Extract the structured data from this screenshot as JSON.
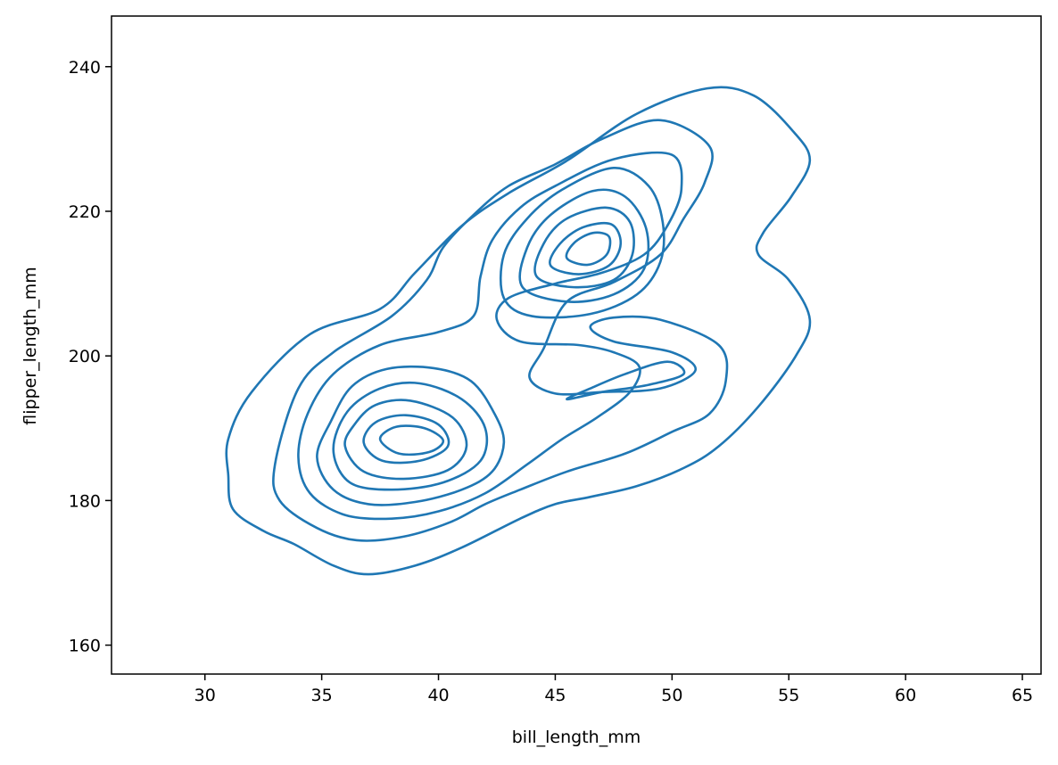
{
  "chart_data": {
    "type": "contour",
    "title": "",
    "xlabel": "bill_length_mm",
    "ylabel": "flipper_length_mm",
    "xlim": [
      26,
      65.8
    ],
    "ylim": [
      156,
      247
    ],
    "xticks": [
      30,
      35,
      40,
      45,
      50,
      55,
      60,
      65
    ],
    "yticks": [
      160,
      180,
      200,
      220,
      240
    ],
    "line_color": "#1f77b4",
    "grid": false,
    "contours": [
      {
        "name": "",
        "points": [
          [
            31.0,
            183.5
          ],
          [
            31.2,
            178.8
          ],
          [
            32.5,
            175.8
          ],
          [
            33.8,
            174
          ],
          [
            35.5,
            171
          ],
          [
            37,
            169.8
          ],
          [
            39,
            171
          ],
          [
            41,
            173.5
          ],
          [
            43.5,
            177.5
          ],
          [
            45,
            179.5
          ],
          [
            46.5,
            180.5
          ],
          [
            48.5,
            182
          ],
          [
            50.5,
            184.5
          ],
          [
            52,
            187.5
          ],
          [
            53.7,
            193
          ],
          [
            55.3,
            200
          ],
          [
            55.9,
            205
          ],
          [
            55,
            210.5
          ],
          [
            53.7,
            214
          ],
          [
            53.9,
            217
          ],
          [
            55.1,
            222
          ],
          [
            55.9,
            227
          ],
          [
            55.2,
            231
          ],
          [
            53.5,
            236
          ],
          [
            51.5,
            237
          ],
          [
            48.5,
            233.5
          ],
          [
            45.5,
            227
          ],
          [
            43,
            222.5
          ],
          [
            41,
            218
          ],
          [
            39,
            211.5
          ],
          [
            37.5,
            206.5
          ],
          [
            34.5,
            203
          ],
          [
            32,
            195
          ],
          [
            31.0,
            188.5
          ]
        ]
      },
      {
        "name": "",
        "points": [
          [
            33.0,
            185
          ],
          [
            33.2,
            180
          ],
          [
            34.8,
            176.2
          ],
          [
            36.5,
            174.5
          ],
          [
            38.5,
            175
          ],
          [
            40.5,
            177
          ],
          [
            42,
            179.5
          ],
          [
            43.5,
            181.5
          ],
          [
            45.5,
            184
          ],
          [
            48,
            186.5
          ],
          [
            50,
            189.5
          ],
          [
            51.6,
            192
          ],
          [
            52.3,
            196.5
          ],
          [
            52,
            201.5
          ],
          [
            49.5,
            205
          ],
          [
            47.5,
            205.3
          ],
          [
            46.5,
            204
          ],
          [
            47.5,
            202
          ],
          [
            50,
            200.5
          ],
          [
            51,
            198
          ],
          [
            49.5,
            195.5
          ],
          [
            47,
            195
          ],
          [
            45,
            194.8
          ],
          [
            43.9,
            197
          ],
          [
            44.5,
            201
          ],
          [
            45.5,
            207.5
          ],
          [
            47.5,
            210.2
          ],
          [
            49.5,
            214
          ],
          [
            50.5,
            219
          ],
          [
            51.4,
            224
          ],
          [
            51.6,
            229
          ],
          [
            49.5,
            232.6
          ],
          [
            47,
            230
          ],
          [
            45,
            226.5
          ],
          [
            43,
            223.5
          ],
          [
            41.5,
            219.5
          ],
          [
            40.2,
            215
          ],
          [
            39.5,
            210.5
          ],
          [
            38,
            205.5
          ],
          [
            35.5,
            200.5
          ],
          [
            34,
            195.5
          ]
        ]
      },
      {
        "name": "",
        "points": [
          [
            34.0,
            186
          ],
          [
            34.5,
            181
          ],
          [
            36,
            178
          ],
          [
            38,
            177.5
          ],
          [
            40,
            178.5
          ],
          [
            42,
            181
          ],
          [
            43.8,
            185
          ],
          [
            45.3,
            188.5
          ],
          [
            46.8,
            191.5
          ],
          [
            48.2,
            195
          ],
          [
            48.6,
            198.5
          ],
          [
            47.5,
            200.5
          ],
          [
            46,
            201.5
          ],
          [
            43.5,
            202
          ],
          [
            42.5,
            205
          ],
          [
            43,
            208
          ],
          [
            45,
            210
          ],
          [
            47,
            211.5
          ],
          [
            48.8,
            214
          ],
          [
            49.8,
            218
          ],
          [
            50.4,
            223
          ],
          [
            50,
            227.8
          ],
          [
            47.5,
            227.2
          ],
          [
            45,
            223.5
          ],
          [
            43.5,
            220.5
          ],
          [
            42.3,
            216
          ],
          [
            41.8,
            211
          ],
          [
            41.5,
            205.5
          ],
          [
            40,
            203.3
          ],
          [
            37.5,
            201.5
          ],
          [
            35.5,
            197.5
          ],
          [
            34.4,
            192
          ]
        ]
      },
      {
        "name": "",
        "points": [
          [
            34.8,
            186
          ],
          [
            35.5,
            181.5
          ],
          [
            37,
            179.5
          ],
          [
            39,
            179.8
          ],
          [
            41,
            181.5
          ],
          [
            42.3,
            184
          ],
          [
            42.8,
            188
          ],
          [
            42.4,
            192
          ],
          [
            41.4,
            196.5
          ],
          [
            39.8,
            198.3
          ],
          [
            37.8,
            198.2
          ],
          [
            36.3,
            195.8
          ],
          [
            35.4,
            191
          ]
        ]
      },
      {
        "name": "",
        "points": [
          [
            35.5,
            187
          ],
          [
            36.2,
            182.5
          ],
          [
            38,
            181.5
          ],
          [
            40.2,
            182.5
          ],
          [
            41.8,
            185.5
          ],
          [
            42,
            190
          ],
          [
            41,
            194
          ],
          [
            39.2,
            196.2
          ],
          [
            37.5,
            195.5
          ],
          [
            36.1,
            192.3
          ]
        ]
      },
      {
        "name": "",
        "points": [
          [
            36.0,
            187.5
          ],
          [
            36.8,
            184
          ],
          [
            38.5,
            183
          ],
          [
            40.4,
            184.2
          ],
          [
            41.2,
            187.5
          ],
          [
            40.6,
            191.5
          ],
          [
            38.8,
            193.8
          ],
          [
            37.3,
            193.2
          ],
          [
            36.4,
            190.5
          ]
        ]
      },
      {
        "name": "",
        "points": [
          [
            36.8,
            188
          ],
          [
            37.6,
            185.5
          ],
          [
            39.2,
            185.5
          ],
          [
            40.4,
            187.5
          ],
          [
            40.0,
            190.5
          ],
          [
            38.6,
            191.8
          ],
          [
            37.3,
            190.8
          ]
        ]
      },
      {
        "name": "",
        "points": [
          [
            37.5,
            188.5
          ],
          [
            38.3,
            186.5
          ],
          [
            39.6,
            186.7
          ],
          [
            40.2,
            188.3
          ],
          [
            39.4,
            190
          ],
          [
            38.2,
            190.2
          ]
        ]
      },
      {
        "name": "",
        "points": [
          [
            42.8,
            208
          ],
          [
            44,
            205.5
          ],
          [
            46.5,
            205.8
          ],
          [
            48.5,
            208.5
          ],
          [
            49.5,
            213
          ],
          [
            49.6,
            218.5
          ],
          [
            49,
            223.5
          ],
          [
            47.5,
            226
          ],
          [
            45.3,
            223
          ],
          [
            43.8,
            219
          ],
          [
            42.8,
            214
          ]
        ]
      },
      {
        "name": "",
        "points": [
          [
            43.6,
            209.5
          ],
          [
            45.5,
            207.5
          ],
          [
            47.5,
            208.5
          ],
          [
            48.8,
            212
          ],
          [
            48.9,
            217.5
          ],
          [
            48,
            222
          ],
          [
            46.6,
            222.8
          ],
          [
            44.8,
            219.5
          ],
          [
            43.8,
            215
          ]
        ]
      },
      {
        "name": "",
        "points": [
          [
            44.2,
            211
          ],
          [
            45.8,
            209.5
          ],
          [
            47.5,
            210.5
          ],
          [
            48.3,
            214
          ],
          [
            48.2,
            218.5
          ],
          [
            47.2,
            220.5
          ],
          [
            45.5,
            219
          ],
          [
            44.5,
            215.5
          ]
        ]
      },
      {
        "name": "",
        "points": [
          [
            44.8,
            212.5
          ],
          [
            46,
            211.3
          ],
          [
            47.3,
            212.5
          ],
          [
            47.8,
            215.5
          ],
          [
            47.4,
            218.2
          ],
          [
            46.2,
            217.8
          ],
          [
            45.2,
            215.5
          ]
        ]
      },
      {
        "name": "",
        "points": [
          [
            45.5,
            213.5
          ],
          [
            46.4,
            212.6
          ],
          [
            47.2,
            214
          ],
          [
            47.3,
            216.5
          ],
          [
            46.6,
            217
          ],
          [
            45.8,
            215.6
          ]
        ]
      },
      {
        "name": "",
        "points": [
          [
            45.5,
            194
          ],
          [
            47,
            195
          ],
          [
            49,
            196
          ],
          [
            50.5,
            197.5
          ],
          [
            49.8,
            199.2
          ],
          [
            48,
            197.5
          ],
          [
            46.5,
            195.5
          ]
        ]
      }
    ]
  }
}
